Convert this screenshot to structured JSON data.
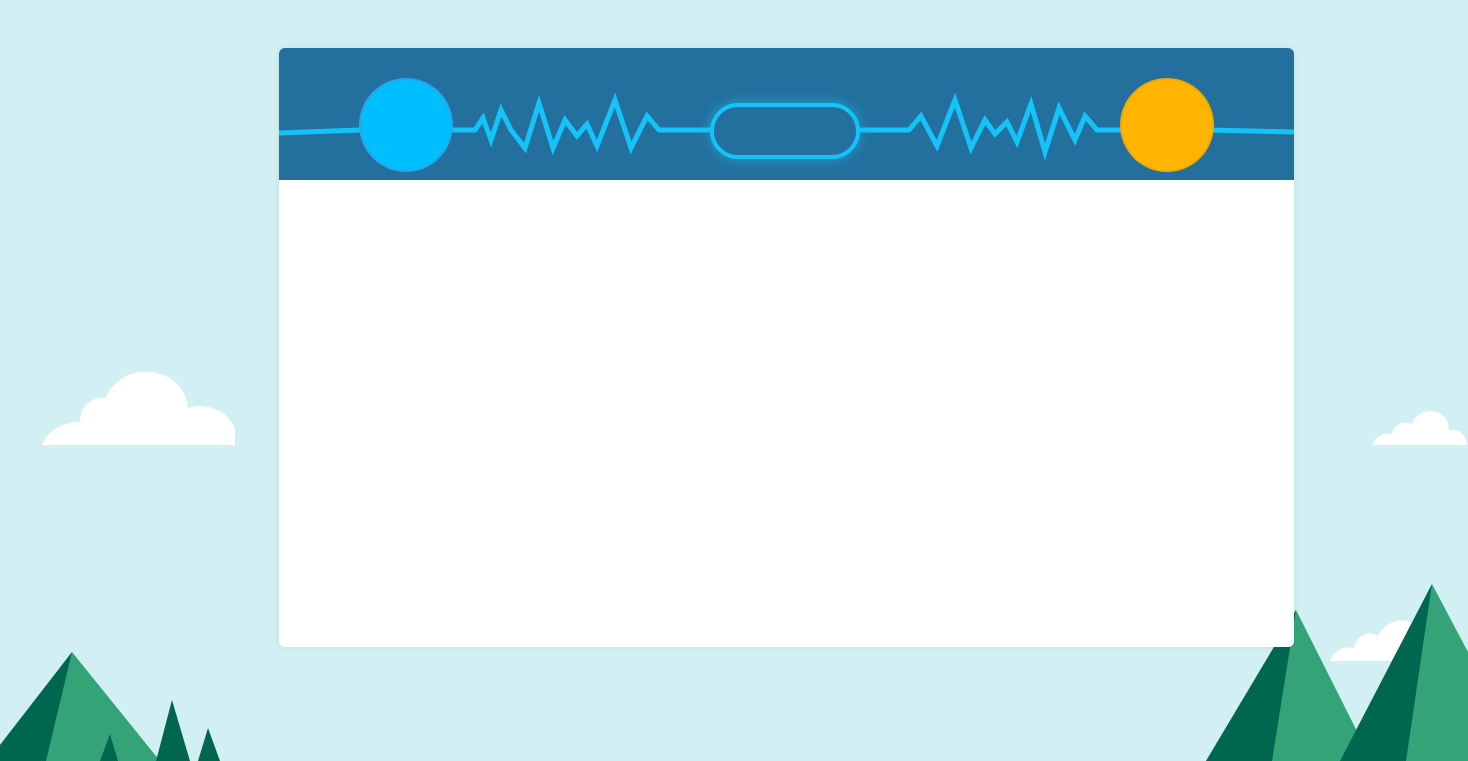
{
  "scene": {
    "sky_color": "#d2f0f3",
    "tree_dark_color": "#00664f",
    "tree_light_color": "#34a478",
    "cloud_color": "#ffffff"
  },
  "panel": {
    "header_color": "#23709e",
    "wave_color": "#16c3f8",
    "body_color": "#ffffff"
  },
  "players": {
    "left": {
      "color": "#00bfff"
    },
    "right": {
      "color": "#ffb400"
    }
  },
  "score": {
    "text": ""
  }
}
